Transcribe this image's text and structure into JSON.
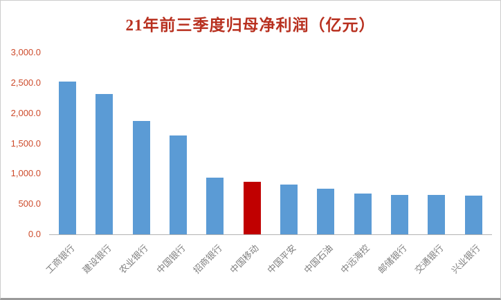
{
  "colors": {
    "title": "#b8301f",
    "ytick": "#cd4a2a",
    "xtick": "#7f7f7f",
    "axis_line": "#b3b3b3",
    "bar": "#5b9bd5",
    "highlight": "#c00000"
  },
  "chart_data": {
    "type": "bar",
    "title": "21年前三季度归母净利润（亿元）",
    "categories": [
      "工商银行",
      "建设银行",
      "农业银行",
      "中国银行",
      "招商银行",
      "中国移动",
      "中国平安",
      "中国石油",
      "中远海控",
      "邮储银行",
      "交通银行",
      "兴业银行"
    ],
    "values": [
      2520,
      2320,
      1868,
      1636,
      936,
      871,
      816,
      751,
      676,
      645,
      646,
      640
    ],
    "highlight_index": 5,
    "xlabel": "",
    "ylabel": "",
    "ylim": [
      0,
      3000
    ],
    "ytick_step": 500,
    "ytick_labels": [
      "3,000.0",
      "2,500.0",
      "2,000.0",
      "1,500.0",
      "1,000.0",
      "500.0",
      "0.0"
    ],
    "grid": false,
    "legend_position": "none"
  }
}
